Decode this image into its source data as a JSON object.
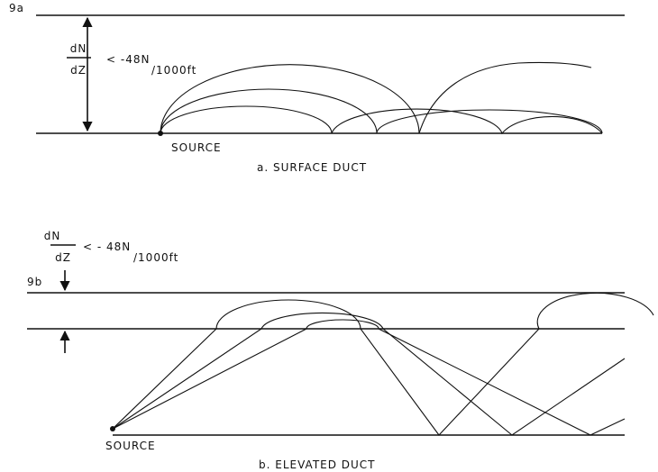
{
  "panels": [
    {
      "label": "9a",
      "gradient": {
        "numerator": "dN",
        "denominator": "dZ",
        "condition": "< -48N",
        "unit": "/1000ft"
      },
      "source": "SOURCE",
      "caption": "a. SURFACE DUCT"
    },
    {
      "label": "9b",
      "gradient": {
        "numerator": "dN",
        "denominator": "dZ",
        "condition": "< - 48N",
        "unit": "/1000ft"
      },
      "source": "SOURCE",
      "caption": "b. ELEVATED DUCT"
    }
  ]
}
